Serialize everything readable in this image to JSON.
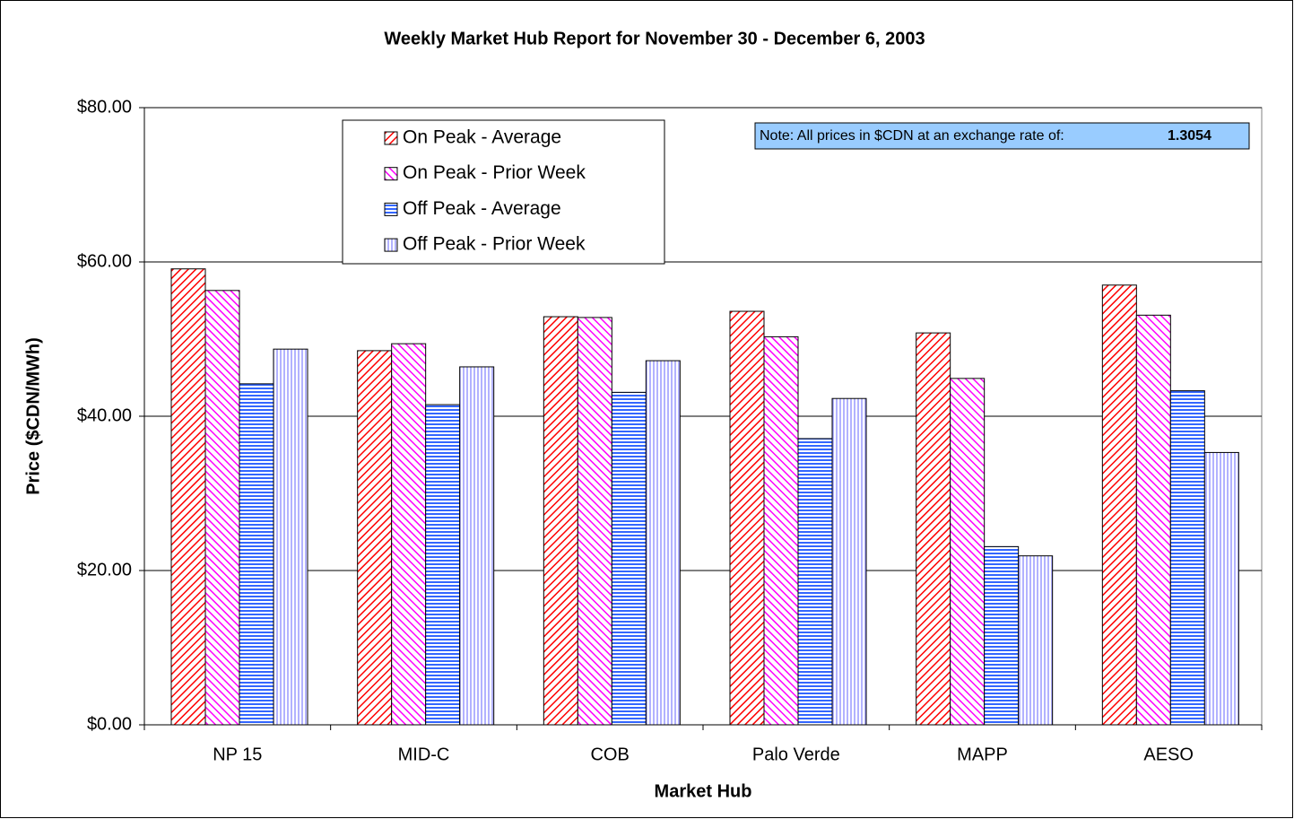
{
  "chart_data": {
    "type": "bar",
    "title": "Weekly Market Hub Report for November 30 - December 6,  2003",
    "x_label": "Market Hub",
    "y_label": "Price ($CDN/MWh)",
    "note": "Note: All prices in $CDN at an exchange rate of:",
    "note_value": "1.3054",
    "categories": [
      "NP 15",
      "MID-C",
      "COB",
      "Palo Verde",
      "MAPP",
      "AESO"
    ],
    "series": [
      {
        "name": "On Peak - Average",
        "color": "#ff0000",
        "hatch": "diagonal-down",
        "values": [
          59.1,
          48.5,
          52.9,
          53.6,
          50.8,
          57.0
        ]
      },
      {
        "name": "On Peak - Prior Week",
        "color": "#ff00ff",
        "hatch": "diagonal-up",
        "values": [
          56.3,
          49.4,
          52.8,
          50.3,
          44.9,
          53.1
        ]
      },
      {
        "name": "Off Peak - Average",
        "color": "#3366ff",
        "hatch": "horizontal",
        "values": [
          44.2,
          41.5,
          43.1,
          37.1,
          23.1,
          43.3
        ]
      },
      {
        "name": "Off Peak - Prior Week",
        "color": "#9999ff",
        "hatch": "vertical",
        "values": [
          48.7,
          46.4,
          47.2,
          42.3,
          21.9,
          35.3
        ]
      }
    ],
    "ylim": [
      0,
      80
    ],
    "yticks": [
      {
        "value": 0,
        "label": "$0.00"
      },
      {
        "value": 20,
        "label": "$20.00"
      },
      {
        "value": 40,
        "label": "$40.00"
      },
      {
        "value": 60,
        "label": "$60.00"
      },
      {
        "value": 80,
        "label": "$80.00"
      }
    ],
    "grid": true
  }
}
